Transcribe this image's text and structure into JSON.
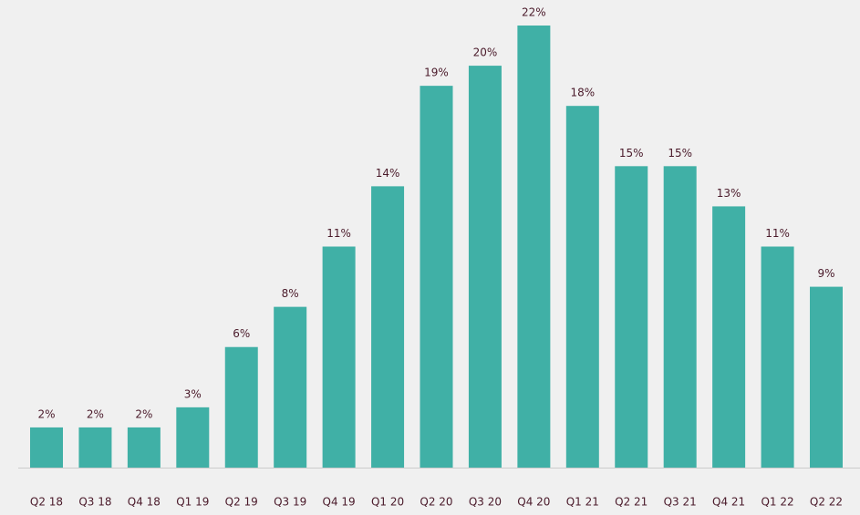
{
  "chart_data": {
    "type": "bar",
    "categories": [
      "Q2 18",
      "Q3 18",
      "Q4 18",
      "Q1 19",
      "Q2 19",
      "Q3 19",
      "Q4 19",
      "Q1 20",
      "Q2 20",
      "Q3 20",
      "Q4 20",
      "Q1 21",
      "Q2 21",
      "Q3 21",
      "Q4 21",
      "Q1 22",
      "Q2 22"
    ],
    "values": [
      2,
      2,
      2,
      3,
      6,
      8,
      11,
      14,
      19,
      20,
      22,
      18,
      15,
      15,
      13,
      11,
      9
    ],
    "value_labels": [
      "2%",
      "2%",
      "2%",
      "3%",
      "6%",
      "8%",
      "11%",
      "14%",
      "19%",
      "20%",
      "22%",
      "18%",
      "15%",
      "15%",
      "13%",
      "11%",
      "9%"
    ],
    "color": "#40b0a6",
    "ylim": [
      0,
      22
    ]
  }
}
